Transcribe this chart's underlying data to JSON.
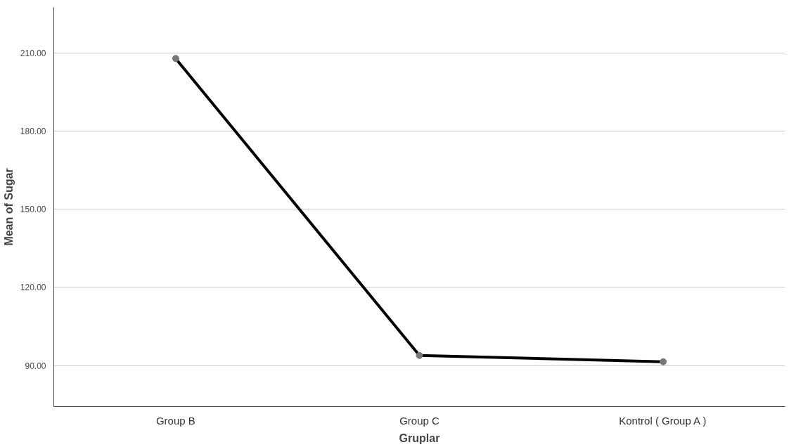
{
  "chart_data": {
    "type": "line",
    "xlabel": "Gruplar",
    "ylabel": "Mean of Sugar",
    "categories": [
      "Group B",
      "Group C",
      "Kontrol ( Group A )"
    ],
    "series": [
      {
        "color": "#000000",
        "values": [
          207.8,
          93.9,
          91.5
        ]
      }
    ],
    "marker": "circle",
    "line_style": "solid",
    "grid": "y",
    "ylim": [
      74.3,
      227.4
    ],
    "yticks": [
      {
        "value": 90,
        "label": "90.00"
      },
      {
        "value": 120,
        "label": "120.00"
      },
      {
        "value": 150,
        "label": "150.00"
      },
      {
        "value": 180,
        "label": "180.00"
      },
      {
        "value": 210,
        "label": "210.00"
      }
    ]
  }
}
